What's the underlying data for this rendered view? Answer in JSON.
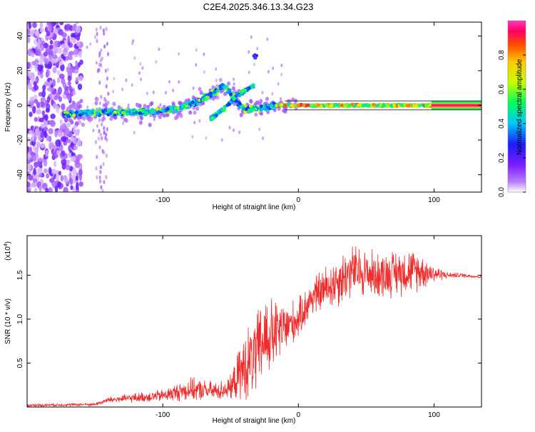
{
  "title": "C2E4.2025.346.13.34.G23",
  "chart_data": [
    {
      "type": "heatmap",
      "xlabel": "Height of straight line (km)",
      "ylabel": "Frequency (Hz)",
      "xlim": [
        -200,
        135
      ],
      "ylim": [
        -50,
        48
      ],
      "xticks": [
        -100,
        0,
        100
      ],
      "yticks": [
        -40,
        -20,
        0,
        20,
        40
      ],
      "colorbar": {
        "label": "Normalized spectral amplitude",
        "range": [
          0,
          1
        ],
        "ticks": [
          "0.0",
          "0.2",
          "0.4",
          "0.6",
          "0.8"
        ]
      },
      "features": {
        "noise_band_km": [
          -200,
          -160
        ],
        "sparse_noise_km": [
          -150,
          -140
        ],
        "ridge": [
          {
            "x": -170,
            "y": -5
          },
          {
            "x": -140,
            "y": -4
          },
          {
            "x": -110,
            "y": -4
          },
          {
            "x": -90,
            "y": -2
          },
          {
            "x": -75,
            "y": 2
          },
          {
            "x": -60,
            "y": 8
          },
          {
            "x": -55,
            "y": 12
          },
          {
            "x": -45,
            "y": 2
          },
          {
            "x": -40,
            "y": -2
          },
          {
            "x": -30,
            "y": -2
          },
          {
            "x": -15,
            "y": 0
          },
          {
            "x": 0,
            "y": 0
          },
          {
            "x": 50,
            "y": 0
          },
          {
            "x": 100,
            "y": 0
          },
          {
            "x": 135,
            "y": 0
          }
        ],
        "branch": [
          {
            "x": -65,
            "y": -8
          },
          {
            "x": -55,
            "y": -2
          },
          {
            "x": -45,
            "y": 6
          },
          {
            "x": -33,
            "y": 11
          }
        ],
        "blob": {
          "x": -32,
          "y": 28
        },
        "strong_tone_km": [
          98,
          135
        ]
      }
    },
    {
      "type": "line",
      "xlabel": "Height of straight line (km)",
      "ylabel": "SNR (10 * v/v)",
      "scale_label": "(x10",
      "scale_exp": "4",
      "scale_close": ")",
      "xlim": [
        -200,
        135
      ],
      "ylim": [
        0,
        1.95
      ],
      "xticks": [
        -100,
        0,
        100
      ],
      "yticks": [
        "0.5",
        "1.0",
        "1.5"
      ],
      "series": [
        {
          "name": "SNR",
          "color": "#ef2b2b",
          "x": [
            -200,
            -150,
            -140,
            -100,
            -80,
            -60,
            -50,
            -40,
            -30,
            -25,
            -20,
            -10,
            0,
            10,
            20,
            30,
            40,
            60,
            80,
            90,
            100,
            110,
            120,
            135
          ],
          "mean": [
            0.02,
            0.03,
            0.08,
            0.13,
            0.2,
            0.18,
            0.22,
            0.45,
            0.6,
            0.8,
            0.8,
            0.9,
            1.0,
            1.25,
            1.35,
            1.45,
            1.55,
            1.5,
            1.55,
            1.55,
            1.52,
            1.5,
            1.5,
            1.48
          ],
          "spread": [
            0.02,
            0.02,
            0.04,
            0.08,
            0.15,
            0.12,
            0.15,
            0.45,
            0.55,
            0.6,
            0.5,
            0.35,
            0.25,
            0.25,
            0.3,
            0.35,
            0.35,
            0.3,
            0.3,
            0.25,
            0.12,
            0.04,
            0.03,
            0.02
          ]
        }
      ]
    }
  ],
  "colors": {
    "scale": [
      "#ffffff",
      "#9f1cff",
      "#1c1cff",
      "#00c8ff",
      "#00ff5a",
      "#c8ff00",
      "#ffc800",
      "#ff4b00",
      "#ff0064",
      "#ff38b8"
    ]
  }
}
